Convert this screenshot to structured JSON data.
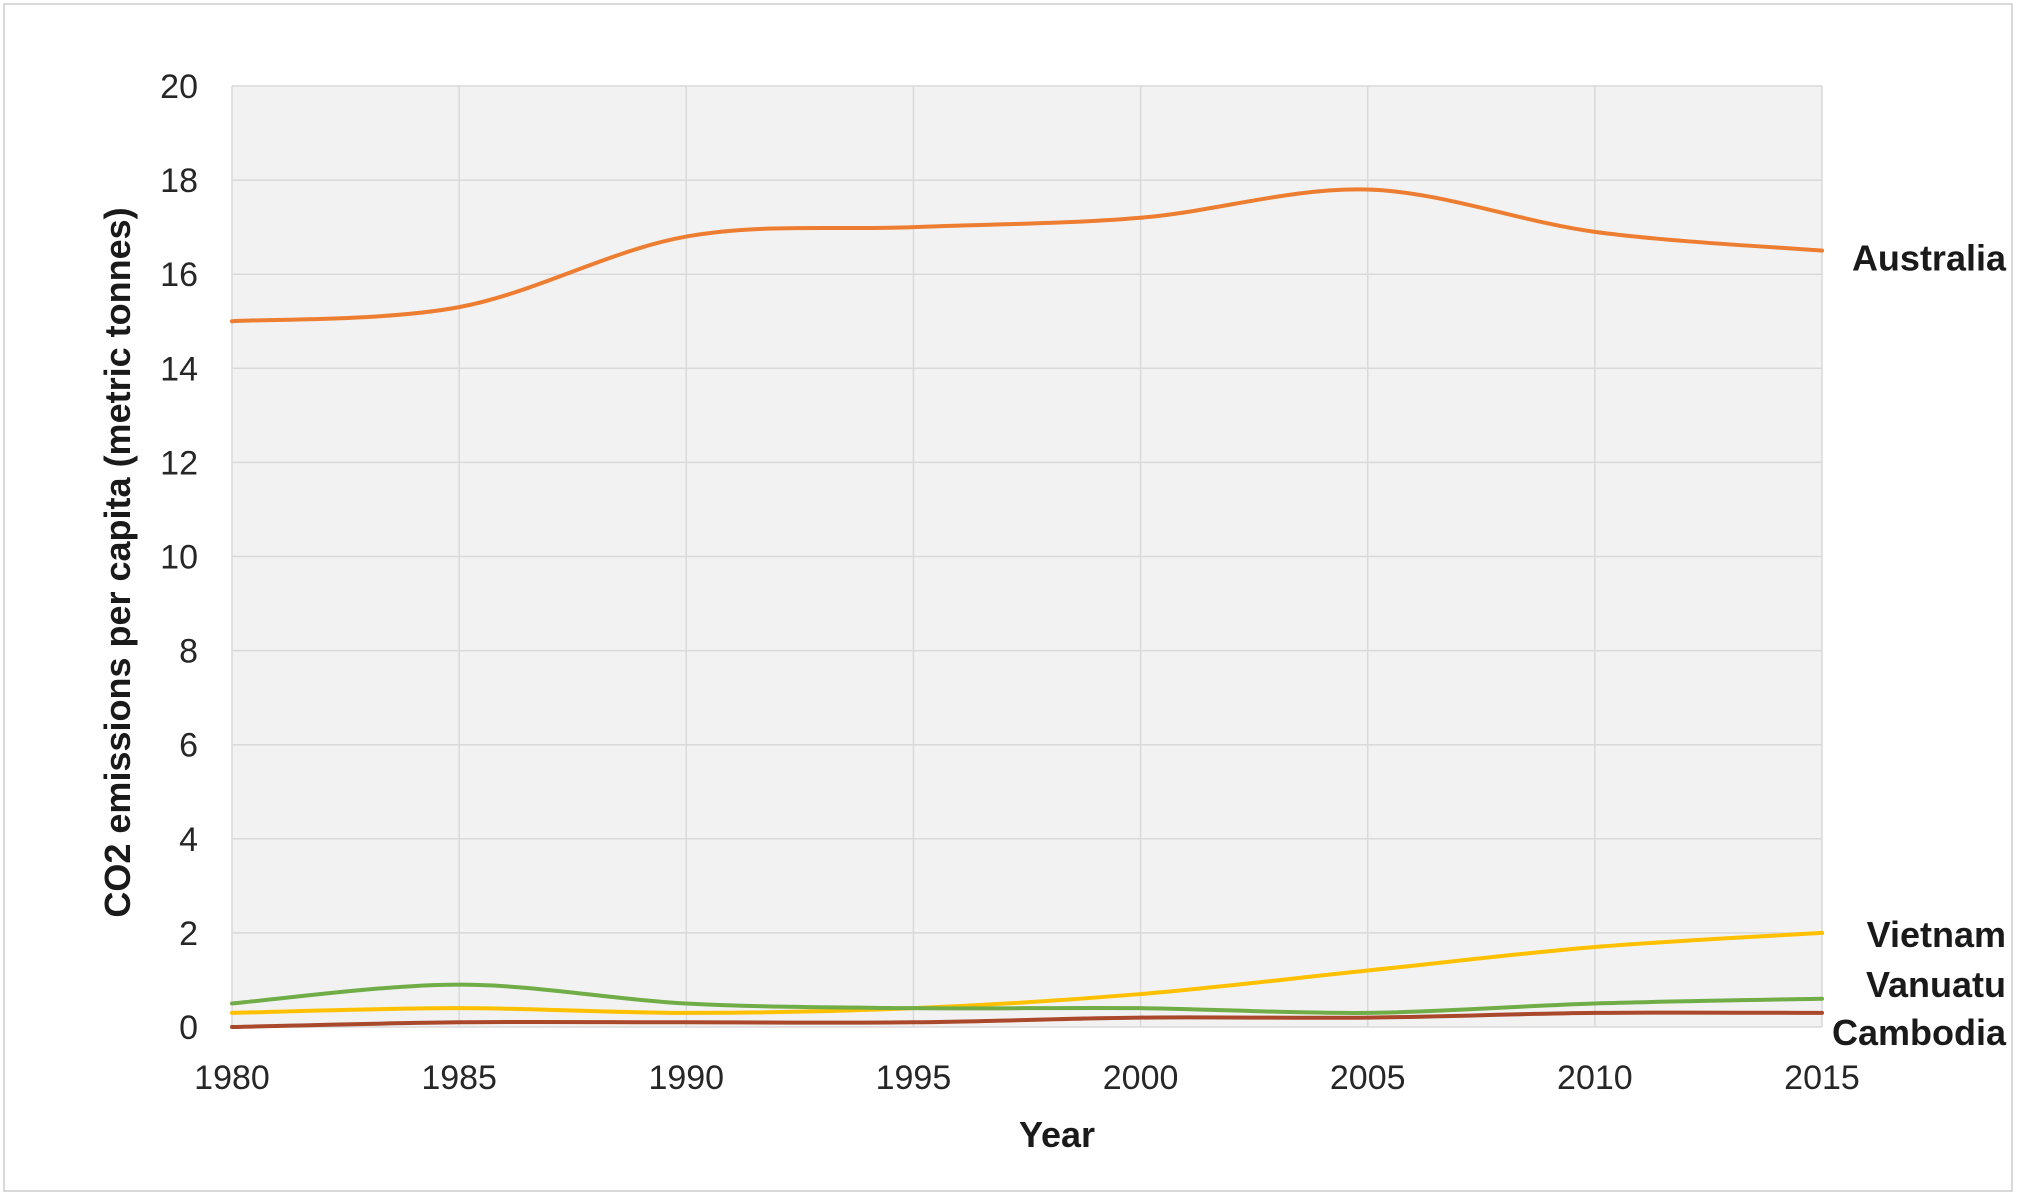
{
  "chart_data": {
    "type": "line",
    "xlabel": "Year",
    "ylabel": "CO2 emissions per capita (metric tonnes)",
    "x": [
      1980,
      1985,
      1990,
      1995,
      2000,
      2005,
      2010,
      2015
    ],
    "x_ticks": [
      "1980",
      "1985",
      "1990",
      "1995",
      "2000",
      "2005",
      "2010",
      "2015"
    ],
    "y_ticks": [
      "0",
      "2",
      "4",
      "6",
      "8",
      "10",
      "12",
      "14",
      "16",
      "18",
      "20"
    ],
    "xlim": [
      1980,
      2015
    ],
    "ylim": [
      0,
      20
    ],
    "grid": true,
    "legend": "labels at right end of each line",
    "series": [
      {
        "name": "Australia",
        "color": "#ed7d31",
        "values": [
          15.0,
          15.3,
          16.8,
          17.0,
          17.2,
          17.8,
          16.9,
          16.5
        ]
      },
      {
        "name": "Vietnam",
        "color": "#ffc000",
        "values": [
          0.3,
          0.4,
          0.3,
          0.4,
          0.7,
          1.2,
          1.7,
          2.0
        ]
      },
      {
        "name": "Vanuatu",
        "color": "#70ad47",
        "values": [
          0.5,
          0.9,
          0.5,
          0.4,
          0.4,
          0.3,
          0.5,
          0.6
        ]
      },
      {
        "name": "Cambodia",
        "color": "#a9482a",
        "values": [
          0.0,
          0.1,
          0.1,
          0.1,
          0.2,
          0.2,
          0.3,
          0.3
        ]
      }
    ]
  }
}
